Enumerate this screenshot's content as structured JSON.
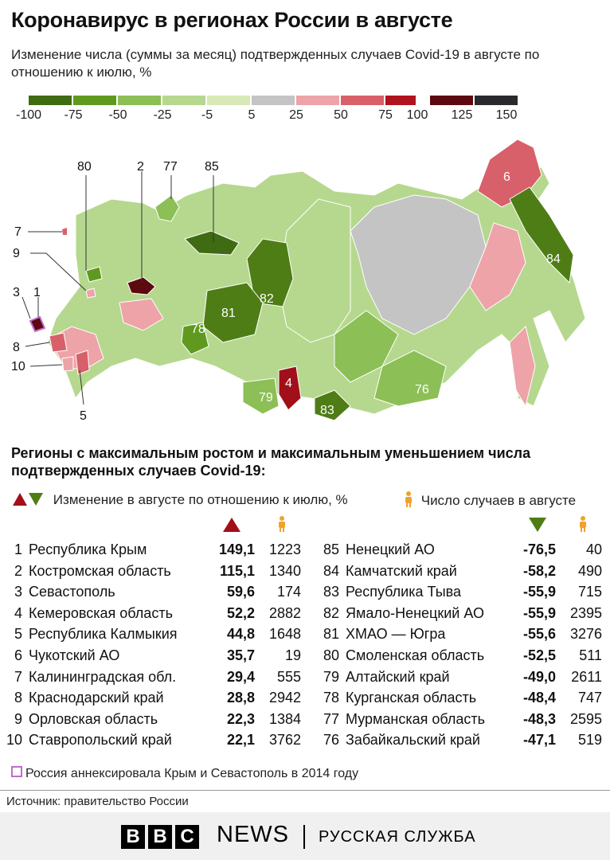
{
  "title": "Коронавирус в регионах России в августе",
  "subtitle": "Изменение числа (суммы за месяц) подтвержденных случаев Covid-19 в августе по отношению к июлю, %",
  "legend": {
    "colors": [
      "#3f6b12",
      "#5f9a1f",
      "#8cbf55",
      "#b5d88e",
      "#d8e8b6",
      "#c4c4c4",
      "#eda3a8",
      "#d8606a",
      "#b0131e",
      "#5c0a10",
      "#2a2a2e"
    ],
    "ticks": [
      "-100",
      "-75",
      "-50",
      "-25",
      "-5",
      "5",
      "25",
      "50",
      "75",
      "100",
      "125",
      "150"
    ]
  },
  "map": {
    "labels": [
      "80",
      "2",
      "77",
      "85",
      "7",
      "9",
      "3",
      "1",
      "8",
      "10",
      "5",
      "6",
      "84",
      "81",
      "82",
      "78",
      "79",
      "4",
      "83",
      "76"
    ]
  },
  "section_title": "Регионы с максимальным ростом и максимальным уменьшением числа подтвержденных случаев Covid-19:",
  "key": {
    "change_label": "Изменение в августе по отношению к июлю, %",
    "count_label": "Число случаев в августе"
  },
  "colors": {
    "up": "#a10f1a",
    "down": "#4e7d16",
    "person": "#f0a22a"
  },
  "growth": [
    {
      "rank": "1",
      "name": "Республика Крым",
      "pct": "149,1",
      "count": "1223"
    },
    {
      "rank": "2",
      "name": "Костромская область",
      "pct": "115,1",
      "count": "1340"
    },
    {
      "rank": "3",
      "name": "Севастополь",
      "pct": "59,6",
      "count": "174"
    },
    {
      "rank": "4",
      "name": "Кемеровская область",
      "pct": "52,2",
      "count": "2882"
    },
    {
      "rank": "5",
      "name": "Республика Калмыкия",
      "pct": "44,8",
      "count": "1648"
    },
    {
      "rank": "6",
      "name": "Чукотский АО",
      "pct": "35,7",
      "count": "19"
    },
    {
      "rank": "7",
      "name": "Калининградская обл.",
      "pct": "29,4",
      "count": "555"
    },
    {
      "rank": "8",
      "name": "Краснодарский край",
      "pct": "28,8",
      "count": "2942"
    },
    {
      "rank": "9",
      "name": "Орловская область",
      "pct": "22,3",
      "count": "1384"
    },
    {
      "rank": "10",
      "name": "Ставропольский край",
      "pct": "22,1",
      "count": "3762"
    }
  ],
  "decline": [
    {
      "rank": "85",
      "name": "Ненецкий АО",
      "pct": "-76,5",
      "count": "40"
    },
    {
      "rank": "84",
      "name": "Камчатский край",
      "pct": "-58,2",
      "count": "490"
    },
    {
      "rank": "83",
      "name": "Республика Тыва",
      "pct": "-55,9",
      "count": "715"
    },
    {
      "rank": "82",
      "name": "Ямало-Ненецкий АО",
      "pct": "-55,9",
      "count": "2395"
    },
    {
      "rank": "81",
      "name": "ХМАО — Югра",
      "pct": "-55,6",
      "count": "3276"
    },
    {
      "rank": "80",
      "name": "Смоленская область",
      "pct": "-52,5",
      "count": "511"
    },
    {
      "rank": "79",
      "name": "Алтайский край",
      "pct": "-49,0",
      "count": "2611"
    },
    {
      "rank": "78",
      "name": "Курганская область",
      "pct": "-48,4",
      "count": "747"
    },
    {
      "rank": "77",
      "name": "Мурманская область",
      "pct": "-48,3",
      "count": "2595"
    },
    {
      "rank": "76",
      "name": "Забайкальский край",
      "pct": "-47,1",
      "count": "519"
    }
  ],
  "note": "Россия аннексировала Крым и Севастополь в 2014 году",
  "source": "Источник: правительство России",
  "footer": {
    "bbc": [
      "B",
      "B",
      "C"
    ],
    "news": "NEWS",
    "service": "РУССКАЯ СЛУЖБА"
  }
}
